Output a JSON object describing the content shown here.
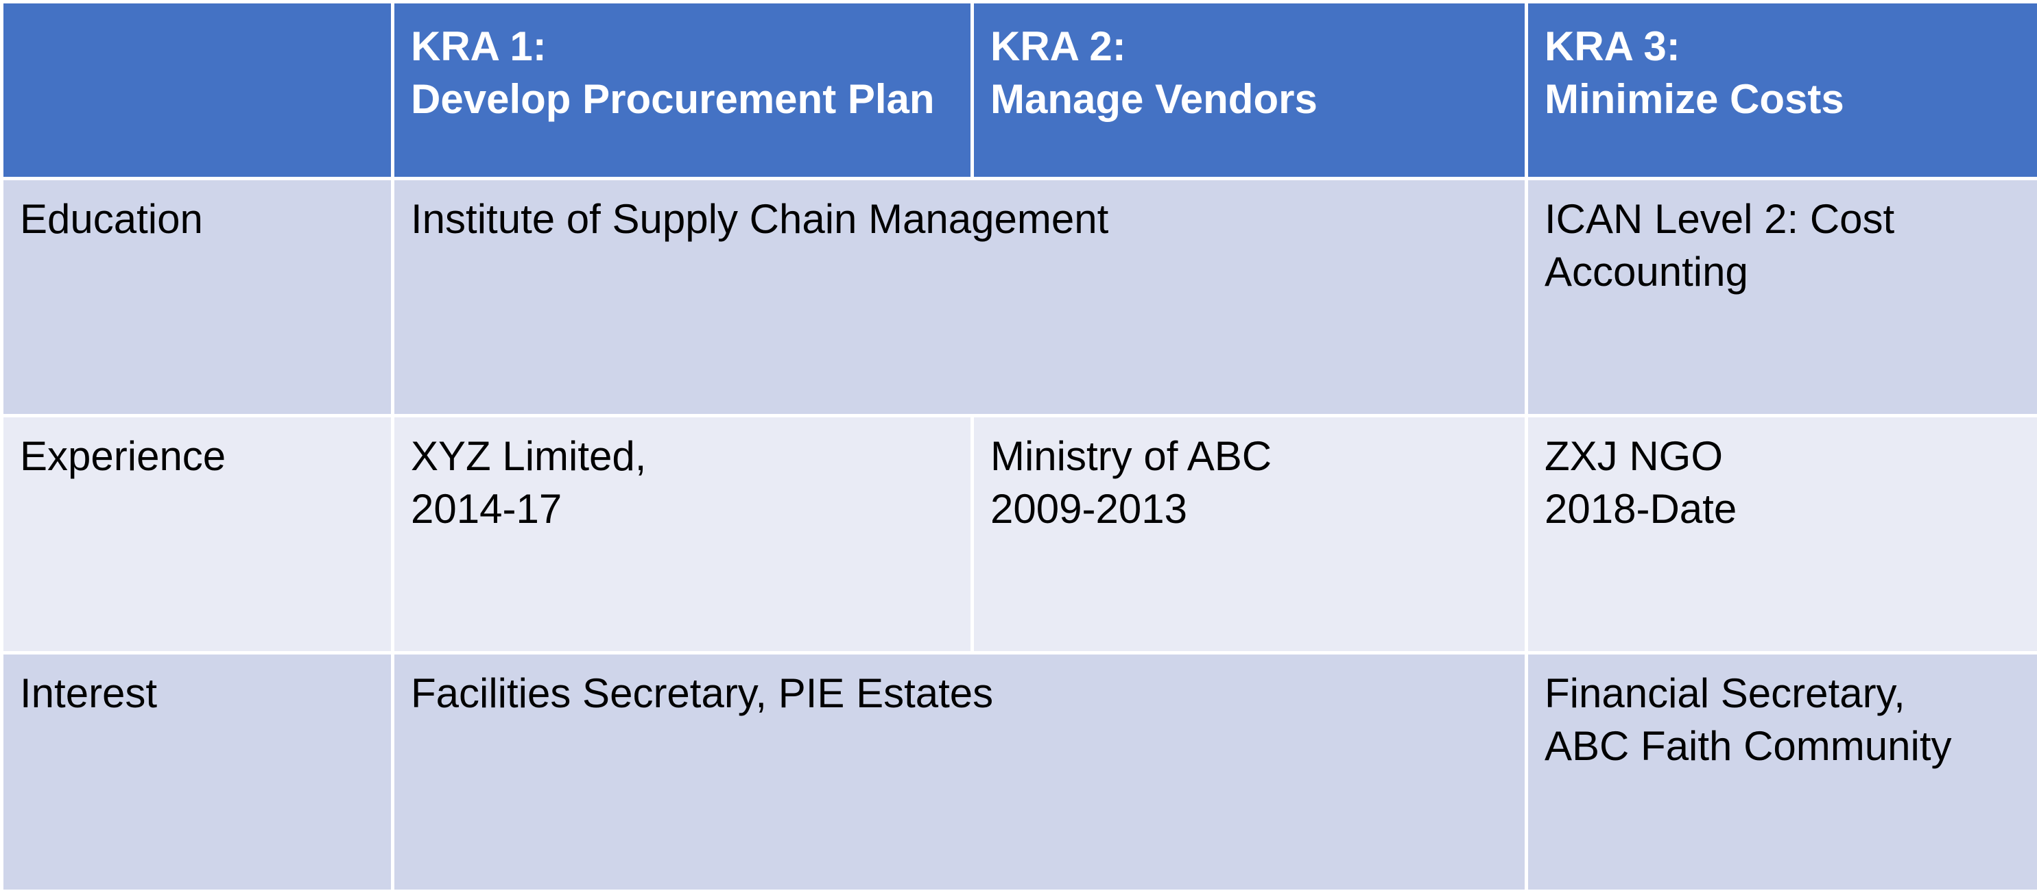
{
  "header": {
    "corner": "",
    "kra1": {
      "line1": "KRA 1:",
      "line2": "Develop Procurement Plan"
    },
    "kra2": {
      "line1": "KRA 2:",
      "line2": "Manage Vendors"
    },
    "kra3": {
      "line1": "KRA 3:",
      "line2": "Minimize Costs"
    }
  },
  "rows": {
    "education": {
      "label": "Education",
      "kra1_2": "Institute of Supply Chain Management",
      "kra3": "ICAN Level 2: Cost Accounting"
    },
    "experience": {
      "label": "Experience",
      "kra1": {
        "line1": "XYZ Limited,",
        "line2": "2014-17"
      },
      "kra2": {
        "line1": "Ministry of ABC",
        "line2": "2009-2013"
      },
      "kra3": {
        "line1": "ZXJ NGO",
        "line2": "2018-Date"
      }
    },
    "interest": {
      "label": "Interest",
      "kra1_2": "Facilities Secretary, PIE Estates",
      "kra3": {
        "line1": "Financial Secretary,",
        "line2": "ABC Faith Community"
      }
    }
  },
  "colors": {
    "header_bg": "#4472c4",
    "band_dark": "#cfd5ea",
    "band_light": "#e9ebf5",
    "border": "#ffffff"
  }
}
